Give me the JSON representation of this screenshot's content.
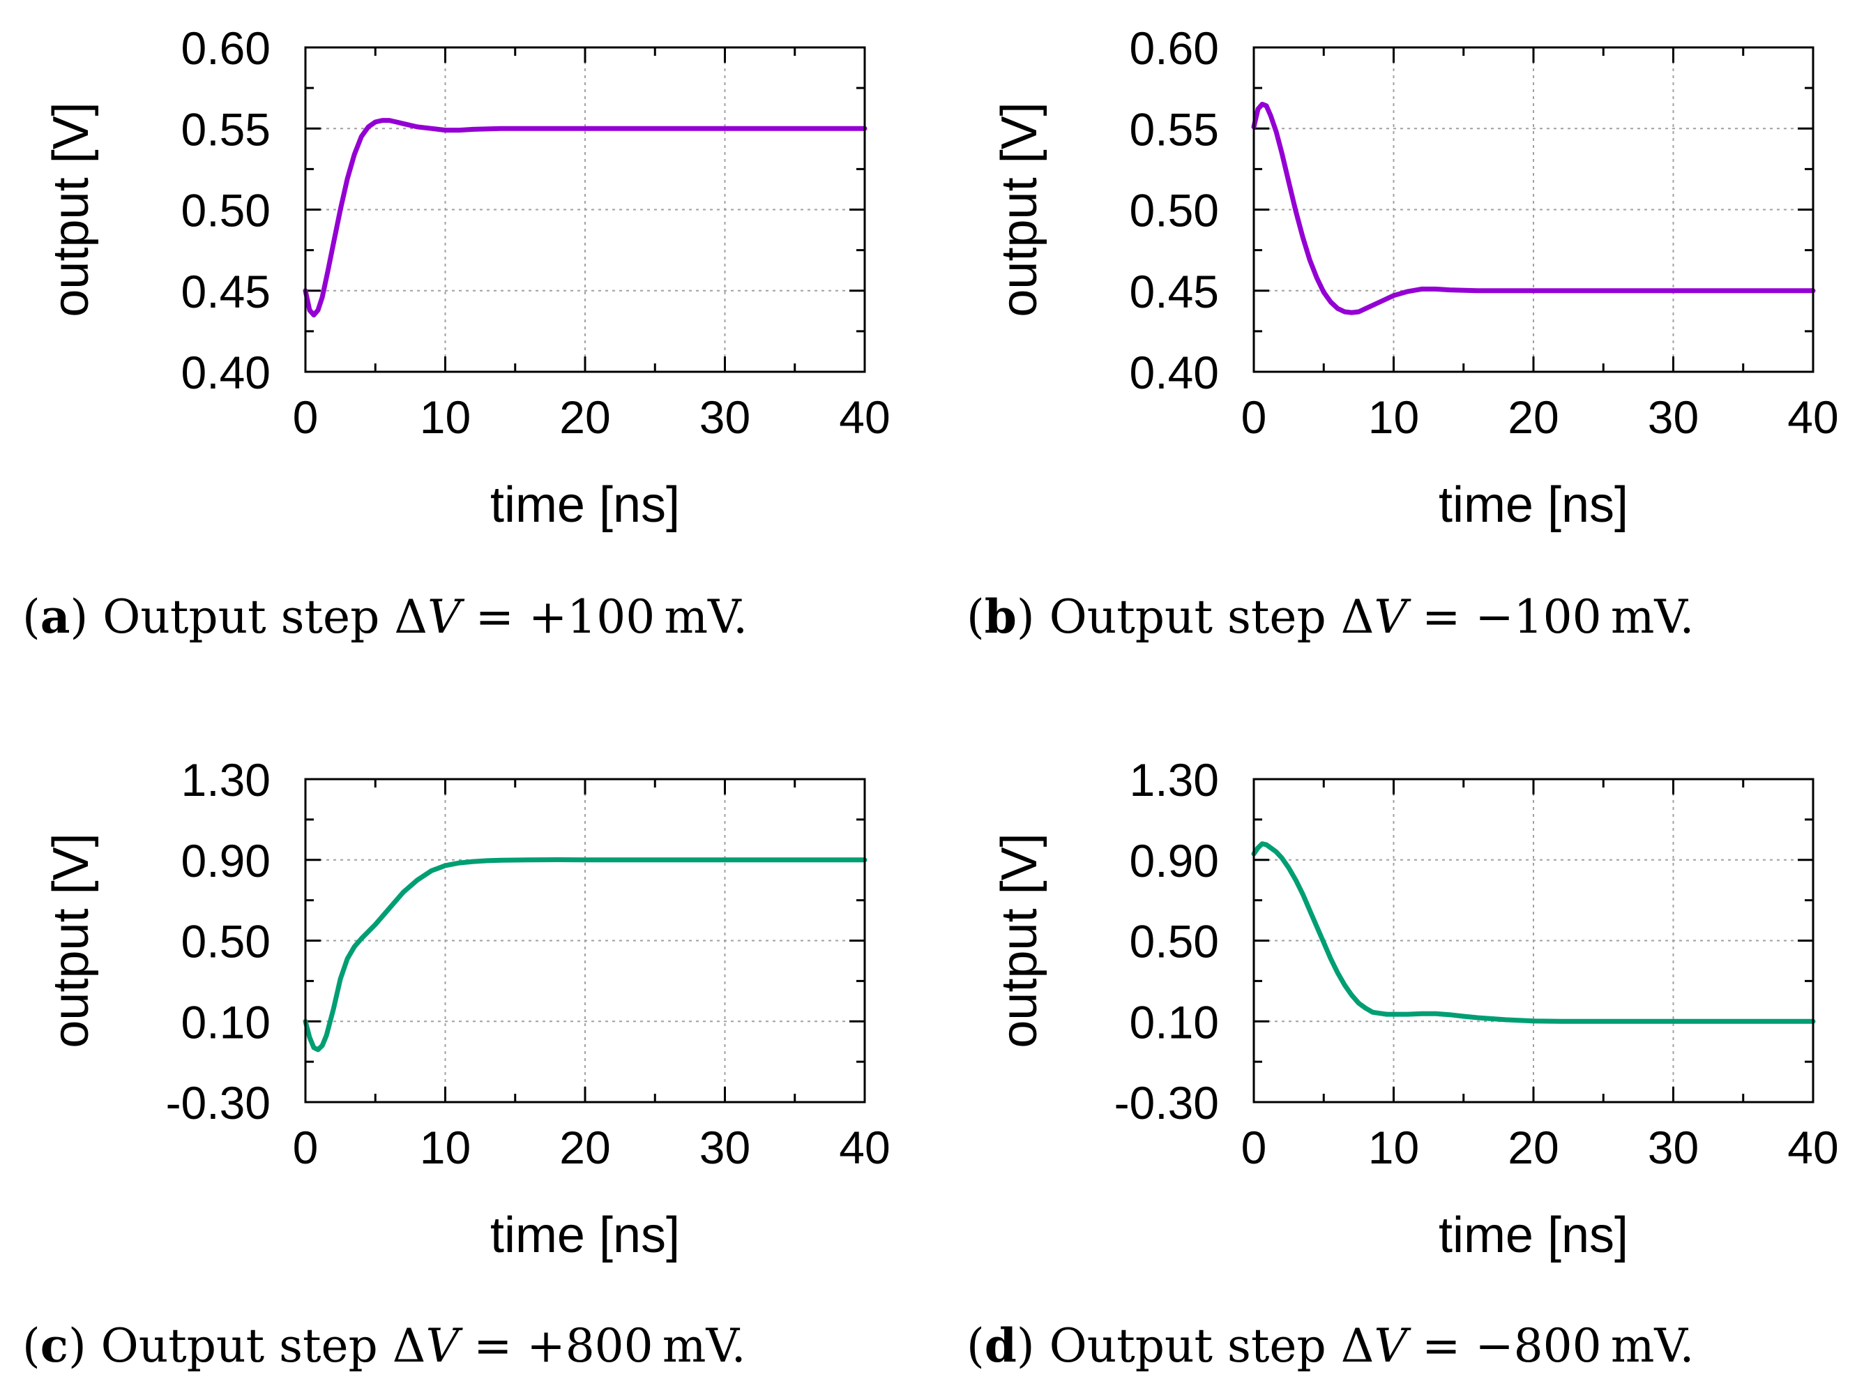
{
  "chart_data": [
    {
      "id": "a",
      "type": "line",
      "xlabel": "time [ns]",
      "ylabel": "output [V]",
      "xlim": [
        0,
        40
      ],
      "ylim": [
        0.4,
        0.6
      ],
      "xticks": [
        "0",
        "10",
        "20",
        "30",
        "40"
      ],
      "yticks": [
        "0.40",
        "0.45",
        "0.50",
        "0.55",
        "0.60"
      ],
      "grid": true,
      "series": [
        {
          "name": "output",
          "color": "#9400d3",
          "x": [
            0,
            0.3,
            0.6,
            0.9,
            1.2,
            1.6,
            2,
            2.5,
            3,
            3.5,
            4,
            4.5,
            5,
            5.5,
            6,
            6.5,
            7,
            8,
            9,
            10,
            11,
            12,
            14,
            16,
            20,
            25,
            30,
            35,
            40
          ],
          "y": [
            0.45,
            0.438,
            0.435,
            0.438,
            0.446,
            0.462,
            0.479,
            0.5,
            0.519,
            0.534,
            0.545,
            0.551,
            0.554,
            0.555,
            0.555,
            0.554,
            0.553,
            0.551,
            0.55,
            0.549,
            0.549,
            0.5495,
            0.55,
            0.55,
            0.55,
            0.55,
            0.55,
            0.55,
            0.55
          ]
        }
      ],
      "caption": {
        "label": "a",
        "text": "Output step",
        "delta": "Δ",
        "var": "V",
        "eq": "=",
        "value": "+100",
        "unit": "mV."
      }
    },
    {
      "id": "b",
      "type": "line",
      "xlabel": "time [ns]",
      "ylabel": "output [V]",
      "xlim": [
        0,
        40
      ],
      "ylim": [
        0.4,
        0.6
      ],
      "xticks": [
        "0",
        "10",
        "20",
        "30",
        "40"
      ],
      "yticks": [
        "0.40",
        "0.45",
        "0.50",
        "0.55",
        "0.60"
      ],
      "grid": true,
      "series": [
        {
          "name": "output",
          "color": "#9400d3",
          "x": [
            0,
            0.3,
            0.6,
            0.9,
            1.2,
            1.6,
            2,
            2.5,
            3,
            3.5,
            4,
            4.5,
            5,
            5.5,
            6,
            6.5,
            7,
            7.5,
            8,
            9,
            10,
            11,
            12,
            13,
            14,
            16,
            18,
            20,
            25,
            30,
            35,
            40
          ],
          "y": [
            0.551,
            0.562,
            0.565,
            0.564,
            0.558,
            0.548,
            0.535,
            0.517,
            0.499,
            0.483,
            0.469,
            0.458,
            0.449,
            0.443,
            0.439,
            0.437,
            0.4365,
            0.437,
            0.439,
            0.443,
            0.447,
            0.4495,
            0.451,
            0.451,
            0.4505,
            0.45,
            0.45,
            0.45,
            0.45,
            0.45,
            0.45,
            0.45
          ]
        }
      ],
      "caption": {
        "label": "b",
        "text": "Output step",
        "delta": "Δ",
        "var": "V",
        "eq": "=",
        "value": "−100",
        "unit": "mV."
      }
    },
    {
      "id": "c",
      "type": "line",
      "xlabel": "time [ns]",
      "ylabel": "output [V]",
      "xlim": [
        0,
        40
      ],
      "ylim": [
        -0.3,
        1.3
      ],
      "xticks": [
        "0",
        "10",
        "20",
        "30",
        "40"
      ],
      "yticks": [
        "-0.30",
        "0.10",
        "0.50",
        "0.90",
        "1.30"
      ],
      "grid": true,
      "series": [
        {
          "name": "output",
          "color": "#009e73",
          "x": [
            0,
            0.3,
            0.6,
            0.9,
            1.2,
            1.5,
            2,
            2.5,
            3,
            3.5,
            4,
            5,
            6,
            7,
            8,
            9,
            10,
            11,
            12,
            13,
            14,
            15,
            16,
            18,
            20,
            25,
            30,
            35,
            40
          ],
          "y": [
            0.1,
            0.02,
            -0.03,
            -0.04,
            -0.02,
            0.03,
            0.16,
            0.31,
            0.41,
            0.47,
            0.51,
            0.58,
            0.66,
            0.74,
            0.8,
            0.846,
            0.872,
            0.885,
            0.892,
            0.896,
            0.898,
            0.899,
            0.9,
            0.901,
            0.9,
            0.9,
            0.9,
            0.9,
            0.9
          ]
        }
      ],
      "caption": {
        "label": "c",
        "text": "Output step",
        "delta": "Δ",
        "var": "V",
        "eq": "=",
        "value": "+800",
        "unit": "mV."
      }
    },
    {
      "id": "d",
      "type": "line",
      "xlabel": "time [ns]",
      "ylabel": "output [V]",
      "xlim": [
        0,
        40
      ],
      "ylim": [
        -0.3,
        1.3
      ],
      "xticks": [
        "0",
        "10",
        "20",
        "30",
        "40"
      ],
      "yticks": [
        "-0.30",
        "0.10",
        "0.50",
        "0.90",
        "1.30"
      ],
      "grid": true,
      "series": [
        {
          "name": "output",
          "color": "#009e73",
          "x": [
            0,
            0.3,
            0.6,
            0.9,
            1.2,
            1.6,
            2,
            2.5,
            3,
            3.5,
            4,
            4.5,
            5,
            5.5,
            6,
            6.5,
            7,
            7.5,
            8,
            8.5,
            9,
            9.5,
            10,
            11,
            12,
            13,
            14,
            15,
            16,
            18,
            20,
            22,
            25,
            30,
            35,
            40
          ],
          "y": [
            0.93,
            0.96,
            0.98,
            0.975,
            0.96,
            0.94,
            0.91,
            0.86,
            0.8,
            0.73,
            0.65,
            0.57,
            0.49,
            0.41,
            0.34,
            0.28,
            0.23,
            0.19,
            0.165,
            0.145,
            0.14,
            0.135,
            0.135,
            0.135,
            0.138,
            0.138,
            0.133,
            0.125,
            0.118,
            0.108,
            0.102,
            0.1,
            0.1,
            0.1,
            0.1,
            0.1
          ]
        }
      ],
      "caption": {
        "label": "d",
        "text": "Output step",
        "delta": "Δ",
        "var": "V",
        "eq": "=",
        "value": "−800",
        "unit": "mV."
      }
    }
  ]
}
